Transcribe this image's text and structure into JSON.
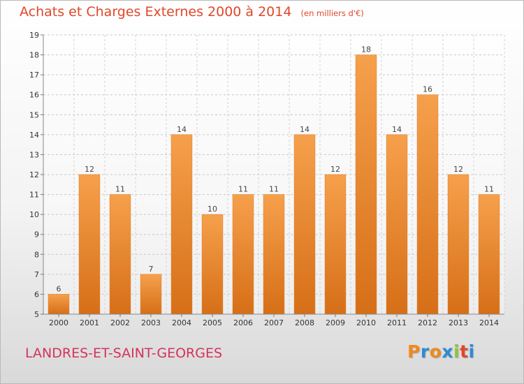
{
  "chart_data": {
    "type": "bar",
    "title": "Achats et Charges Externes 2000 à 2014",
    "unit_note": "(en milliers d'€)",
    "subtitle_place": "LANDRES-ET-SAINT-GEORGES",
    "categories": [
      "2000",
      "2001",
      "2002",
      "2003",
      "2004",
      "2005",
      "2006",
      "2007",
      "2008",
      "2009",
      "2010",
      "2011",
      "2012",
      "2013",
      "2014"
    ],
    "values": [
      6,
      12,
      11,
      7,
      14,
      10,
      11,
      11,
      14,
      12,
      18,
      14,
      16,
      12,
      11
    ],
    "data_labels": [
      "6",
      "12",
      "11",
      "7",
      "14",
      "10",
      "11",
      "11",
      "14",
      "12",
      "18",
      "14",
      "16",
      "12",
      "11"
    ],
    "y_ticks": [
      5,
      6,
      7,
      8,
      9,
      10,
      11,
      12,
      13,
      14,
      15,
      16,
      17,
      18,
      19
    ],
    "ylim": [
      5,
      19
    ],
    "grid": true,
    "bar_color": "#f0892f",
    "legend": "none"
  },
  "brand": {
    "name": "Proxiti",
    "letter_colors": [
      "#f08a1c",
      "#2e8bd6",
      "#f08a1c",
      "#2e8bd6",
      "#8cc63f",
      "#e0472a",
      "#2e8bd6"
    ]
  }
}
